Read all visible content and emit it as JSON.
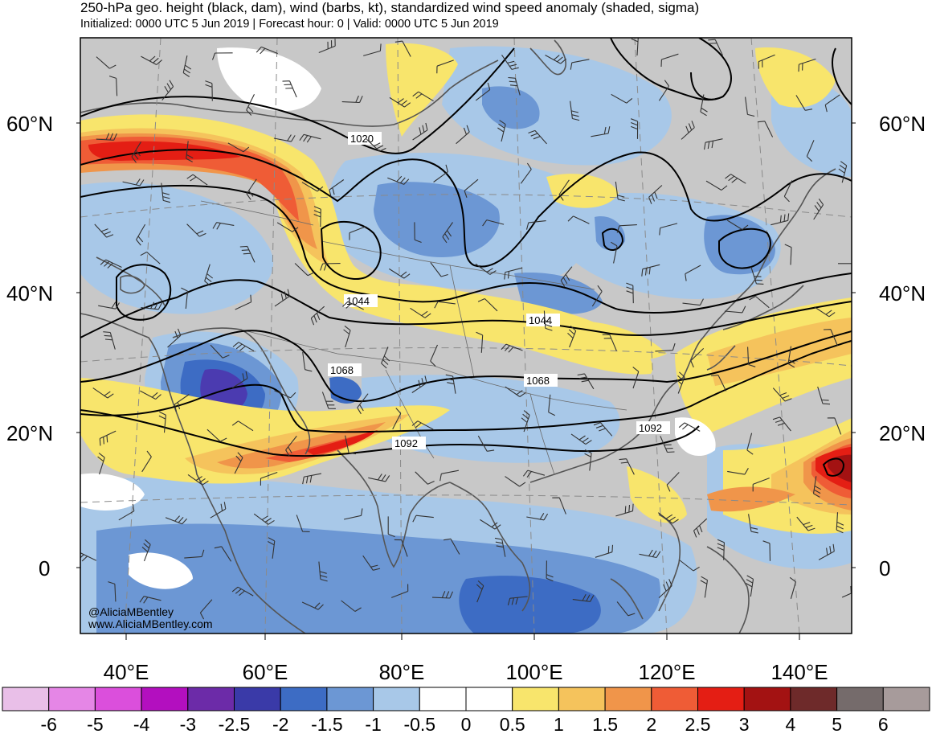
{
  "header": {
    "title": "250-hPa geo. height (black, dam), wind (barbs, kt), standardized wind speed anomaly (shaded, sigma)",
    "subtitle": "Initialized: 0000 UTC 5 Jun 2019 | Forecast hour: 0 | Valid: 0000 UTC 5 Jun 2019"
  },
  "map": {
    "lat_labels": [
      "60°N",
      "40°N",
      "20°N",
      "0"
    ],
    "lon_labels": [
      "40°E",
      "60°E",
      "80°E",
      "100°E",
      "120°E",
      "140°E"
    ],
    "contour_labels": [
      "1020",
      "1044",
      "1044",
      "1068",
      "1068",
      "1092",
      "1092"
    ],
    "credit": [
      "@AliciaMBentley",
      "www.AliciaMBentley.com"
    ]
  },
  "colorbar": {
    "labels": [
      "-6",
      "-5",
      "-4",
      "-3",
      "-2.5",
      "-2",
      "-1.5",
      "-1",
      "-0.5",
      "0",
      "0.5",
      "1",
      "1.5",
      "2",
      "2.5",
      "3",
      "4",
      "5",
      "6"
    ],
    "colors": [
      "#e9bfe8",
      "#e586e6",
      "#db4fdc",
      "#b30fbf",
      "#6c2ba8",
      "#3a3aa8",
      "#3d6cc4",
      "#6c97d4",
      "#a8c8e8",
      "#ffffff",
      "#ffffff",
      "#f8e56c",
      "#f5c35c",
      "#f0954a",
      "#ef5c36",
      "#e41e14",
      "#a31212",
      "#6e2a2a",
      "#756b6b",
      "#a79b9b"
    ]
  }
}
